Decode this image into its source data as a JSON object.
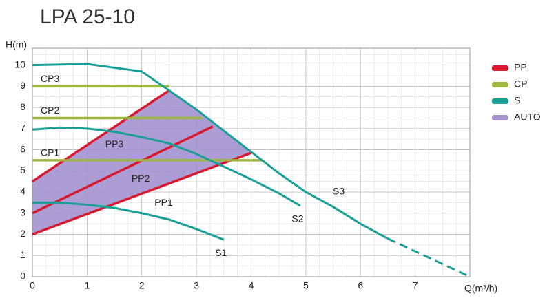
{
  "chart_data": {
    "type": "line",
    "title": "LPA 25-10",
    "y_label": "H(m)",
    "x_label": "Q(m³/h)",
    "xlim": [
      0,
      8
    ],
    "ylim": [
      0,
      10.8
    ],
    "xticks": [
      0,
      1,
      2,
      3,
      4,
      5,
      6,
      7
    ],
    "yticks": [
      0,
      1,
      2,
      3,
      4,
      5,
      6,
      7,
      8,
      9,
      10
    ],
    "grid": true,
    "legend_position": "right",
    "legend": [
      {
        "name": "PP",
        "color": "#d7192f"
      },
      {
        "name": "CP",
        "color": "#9bb83a"
      },
      {
        "name": "S",
        "color": "#1a9f97"
      },
      {
        "name": "AUTO",
        "color": "#a394cf"
      }
    ],
    "series": [
      {
        "name": "AUTO",
        "group": "AUTO",
        "type": "area",
        "x": [
          0,
          4,
          3.5,
          3,
          2.5,
          0
        ],
        "values": [
          2,
          5.85,
          6.9,
          7.9,
          8.8,
          4.5
        ]
      },
      {
        "name": "PP3",
        "group": "PP",
        "x": [
          0,
          2.5
        ],
        "values": [
          4.5,
          8.8
        ]
      },
      {
        "name": "PP2",
        "group": "PP",
        "x": [
          0,
          3.3
        ],
        "values": [
          3.0,
          7.1
        ]
      },
      {
        "name": "PP1",
        "group": "PP",
        "x": [
          0,
          4
        ],
        "values": [
          2.0,
          5.85
        ]
      },
      {
        "name": "CP3",
        "group": "CP",
        "x": [
          0,
          2.5
        ],
        "values": [
          9,
          9
        ]
      },
      {
        "name": "CP2",
        "group": "CP",
        "x": [
          0,
          3.1
        ],
        "values": [
          7.5,
          7.5
        ]
      },
      {
        "name": "CP1",
        "group": "CP",
        "x": [
          0,
          4.2
        ],
        "values": [
          5.5,
          5.5
        ]
      },
      {
        "name": "S3",
        "group": "S",
        "dashed_from": 6.5,
        "x": [
          0,
          1,
          2,
          2.5,
          3,
          3.5,
          4,
          4.5,
          5,
          5.5,
          6,
          6.5,
          8
        ],
        "values": [
          10.0,
          10.05,
          9.7,
          8.8,
          7.9,
          6.9,
          5.9,
          4.9,
          4.0,
          3.3,
          2.5,
          1.8,
          0
        ]
      },
      {
        "name": "S2",
        "group": "S",
        "x": [
          0,
          0.5,
          1,
          1.5,
          2,
          2.5,
          3,
          3.5,
          4,
          4.5,
          4.9
        ],
        "values": [
          6.95,
          7.05,
          7.0,
          6.85,
          6.6,
          6.3,
          5.8,
          5.2,
          4.6,
          3.95,
          3.35
        ]
      },
      {
        "name": "S1",
        "group": "S",
        "x": [
          0,
          0.5,
          1,
          1.5,
          2,
          2.5,
          3,
          3.5
        ],
        "values": [
          3.5,
          3.5,
          3.4,
          3.25,
          3.0,
          2.7,
          2.25,
          1.75
        ]
      }
    ]
  }
}
